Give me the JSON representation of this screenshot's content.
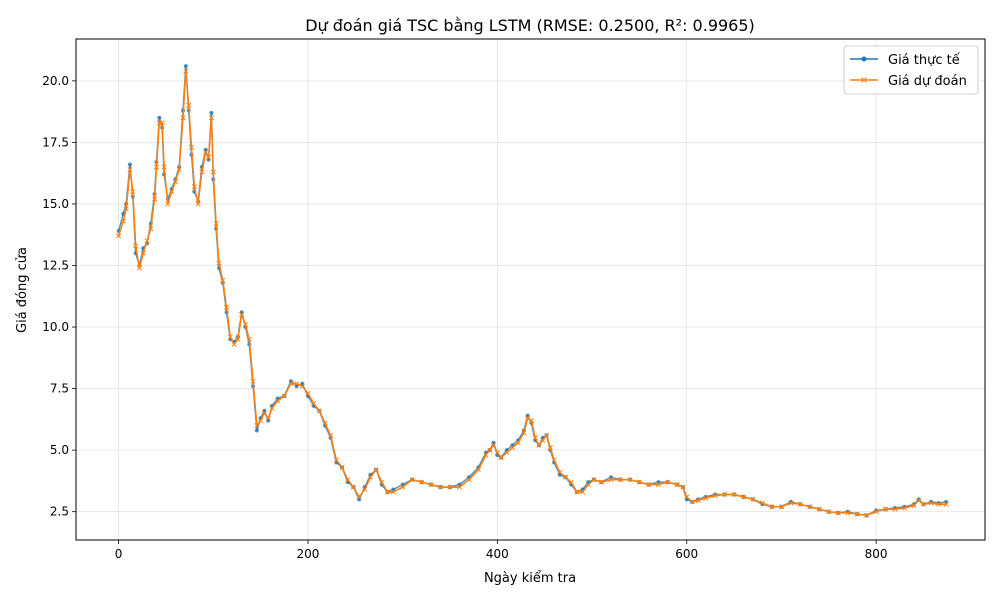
{
  "chart_data": {
    "type": "line",
    "title": "Dự đoán giá TSC bằng LSTM (RMSE: 0.2500, R²: 0.9965)",
    "xlabel": "Ngày kiểm tra",
    "ylabel": "Giá đóng cửa",
    "xlim": [
      -45,
      915
    ],
    "ylim": [
      1.35,
      21.7
    ],
    "xticks": [
      0,
      200,
      400,
      600,
      800
    ],
    "yticks": [
      2.5,
      5.0,
      7.5,
      10.0,
      12.5,
      15.0,
      17.5,
      20.0
    ],
    "xtick_labels": [
      "0",
      "200",
      "400",
      "600",
      "800"
    ],
    "ytick_labels": [
      "2.5",
      "5.0",
      "7.5",
      "10.0",
      "12.5",
      "15.0",
      "17.5",
      "20.0"
    ],
    "grid": true,
    "legend_position": "top-right",
    "series": [
      {
        "name": "Giá thực tế",
        "color": "#1f77b4",
        "marker": "circle",
        "x": [
          0,
          5,
          8,
          12,
          15,
          18,
          22,
          26,
          30,
          34,
          38,
          40,
          43,
          46,
          48,
          52,
          56,
          60,
          64,
          68,
          71,
          74,
          77,
          80,
          84,
          88,
          92,
          95,
          98,
          100,
          103,
          106,
          110,
          114,
          118,
          122,
          126,
          130,
          134,
          138,
          142,
          146,
          150,
          154,
          158,
          162,
          168,
          175,
          182,
          188,
          194,
          200,
          206,
          212,
          218,
          224,
          230,
          236,
          242,
          248,
          254,
          260,
          266,
          272,
          278,
          284,
          290,
          300,
          310,
          320,
          330,
          340,
          350,
          360,
          370,
          380,
          388,
          392,
          396,
          400,
          404,
          410,
          416,
          422,
          428,
          432,
          436,
          440,
          444,
          448,
          452,
          456,
          460,
          466,
          472,
          478,
          484,
          490,
          496,
          502,
          510,
          520,
          530,
          540,
          550,
          560,
          570,
          580,
          590,
          596,
          600,
          606,
          612,
          620,
          630,
          640,
          650,
          660,
          670,
          680,
          690,
          700,
          710,
          720,
          730,
          740,
          750,
          760,
          770,
          780,
          790,
          800,
          810,
          820,
          830,
          840,
          845,
          850,
          858,
          866,
          874
        ],
        "y": [
          13.9,
          14.6,
          15.0,
          16.6,
          15.3,
          13.0,
          12.5,
          13.2,
          13.4,
          14.2,
          15.4,
          16.7,
          18.5,
          18.1,
          16.2,
          15.2,
          15.6,
          16.0,
          16.5,
          18.8,
          20.6,
          18.8,
          17.0,
          15.5,
          15.1,
          16.5,
          17.2,
          16.8,
          18.7,
          16.0,
          14.0,
          12.4,
          11.8,
          10.6,
          9.5,
          9.4,
          9.6,
          10.6,
          10.0,
          9.3,
          7.6,
          5.8,
          6.3,
          6.6,
          6.2,
          6.8,
          7.1,
          7.2,
          7.8,
          7.6,
          7.7,
          7.2,
          6.8,
          6.6,
          6.0,
          5.5,
          4.5,
          4.3,
          3.7,
          3.5,
          3.0,
          3.5,
          4.0,
          4.2,
          3.6,
          3.3,
          3.4,
          3.6,
          3.8,
          3.7,
          3.6,
          3.5,
          3.5,
          3.6,
          3.9,
          4.3,
          4.9,
          5.0,
          5.3,
          4.8,
          4.7,
          5.0,
          5.2,
          5.4,
          5.8,
          6.4,
          6.1,
          5.4,
          5.2,
          5.5,
          5.6,
          5.0,
          4.5,
          4.0,
          3.9,
          3.6,
          3.3,
          3.4,
          3.7,
          3.8,
          3.7,
          3.9,
          3.8,
          3.8,
          3.7,
          3.6,
          3.7,
          3.7,
          3.6,
          3.5,
          3.0,
          2.9,
          3.0,
          3.1,
          3.2,
          3.2,
          3.2,
          3.1,
          3.0,
          2.8,
          2.7,
          2.7,
          2.9,
          2.8,
          2.7,
          2.6,
          2.5,
          2.45,
          2.5,
          2.4,
          2.35,
          2.55,
          2.6,
          2.65,
          2.7,
          2.8,
          3.0,
          2.8,
          2.9,
          2.85,
          2.9
        ]
      },
      {
        "name": "Giá dự đoán",
        "color": "#ff7f0e",
        "marker": "x",
        "x": [
          0,
          5,
          8,
          12,
          15,
          18,
          22,
          26,
          30,
          34,
          38,
          40,
          43,
          46,
          48,
          52,
          56,
          60,
          64,
          68,
          71,
          74,
          77,
          80,
          84,
          88,
          92,
          95,
          98,
          100,
          103,
          106,
          110,
          114,
          118,
          122,
          126,
          130,
          134,
          138,
          142,
          146,
          150,
          154,
          158,
          162,
          168,
          175,
          182,
          188,
          194,
          200,
          206,
          212,
          218,
          224,
          230,
          236,
          242,
          248,
          254,
          260,
          266,
          272,
          278,
          284,
          290,
          300,
          310,
          320,
          330,
          340,
          350,
          360,
          370,
          380,
          388,
          392,
          396,
          400,
          404,
          410,
          416,
          422,
          428,
          432,
          436,
          440,
          444,
          448,
          452,
          456,
          460,
          466,
          472,
          478,
          484,
          490,
          496,
          502,
          510,
          520,
          530,
          540,
          550,
          560,
          570,
          580,
          590,
          596,
          600,
          606,
          612,
          620,
          630,
          640,
          650,
          660,
          670,
          680,
          690,
          700,
          710,
          720,
          730,
          740,
          750,
          760,
          770,
          780,
          790,
          800,
          810,
          820,
          830,
          840,
          845,
          850,
          858,
          866,
          874
        ],
        "y": [
          13.7,
          14.3,
          14.8,
          16.4,
          15.5,
          13.3,
          12.4,
          13.0,
          13.5,
          14.0,
          15.2,
          16.5,
          18.3,
          18.3,
          16.5,
          15.0,
          15.5,
          15.9,
          16.4,
          18.5,
          20.4,
          19.0,
          17.3,
          15.7,
          15.0,
          16.3,
          17.1,
          16.9,
          18.5,
          16.3,
          14.2,
          12.6,
          11.9,
          10.8,
          9.6,
          9.3,
          9.5,
          10.5,
          10.1,
          9.5,
          7.8,
          6.0,
          6.2,
          6.5,
          6.3,
          6.7,
          7.0,
          7.2,
          7.7,
          7.7,
          7.6,
          7.3,
          6.9,
          6.6,
          6.1,
          5.6,
          4.6,
          4.3,
          3.8,
          3.5,
          3.1,
          3.4,
          3.9,
          4.2,
          3.7,
          3.3,
          3.3,
          3.5,
          3.8,
          3.7,
          3.6,
          3.5,
          3.5,
          3.5,
          3.8,
          4.2,
          4.8,
          5.0,
          5.2,
          4.9,
          4.7,
          4.9,
          5.1,
          5.3,
          5.7,
          6.3,
          6.2,
          5.5,
          5.2,
          5.4,
          5.6,
          5.1,
          4.6,
          4.1,
          3.9,
          3.7,
          3.3,
          3.3,
          3.6,
          3.8,
          3.7,
          3.8,
          3.8,
          3.8,
          3.7,
          3.6,
          3.6,
          3.7,
          3.6,
          3.5,
          3.1,
          2.9,
          2.95,
          3.05,
          3.15,
          3.2,
          3.2,
          3.1,
          3.0,
          2.85,
          2.7,
          2.7,
          2.85,
          2.8,
          2.7,
          2.6,
          2.5,
          2.45,
          2.45,
          2.4,
          2.35,
          2.5,
          2.6,
          2.6,
          2.65,
          2.75,
          2.95,
          2.8,
          2.85,
          2.8,
          2.8
        ]
      }
    ]
  }
}
